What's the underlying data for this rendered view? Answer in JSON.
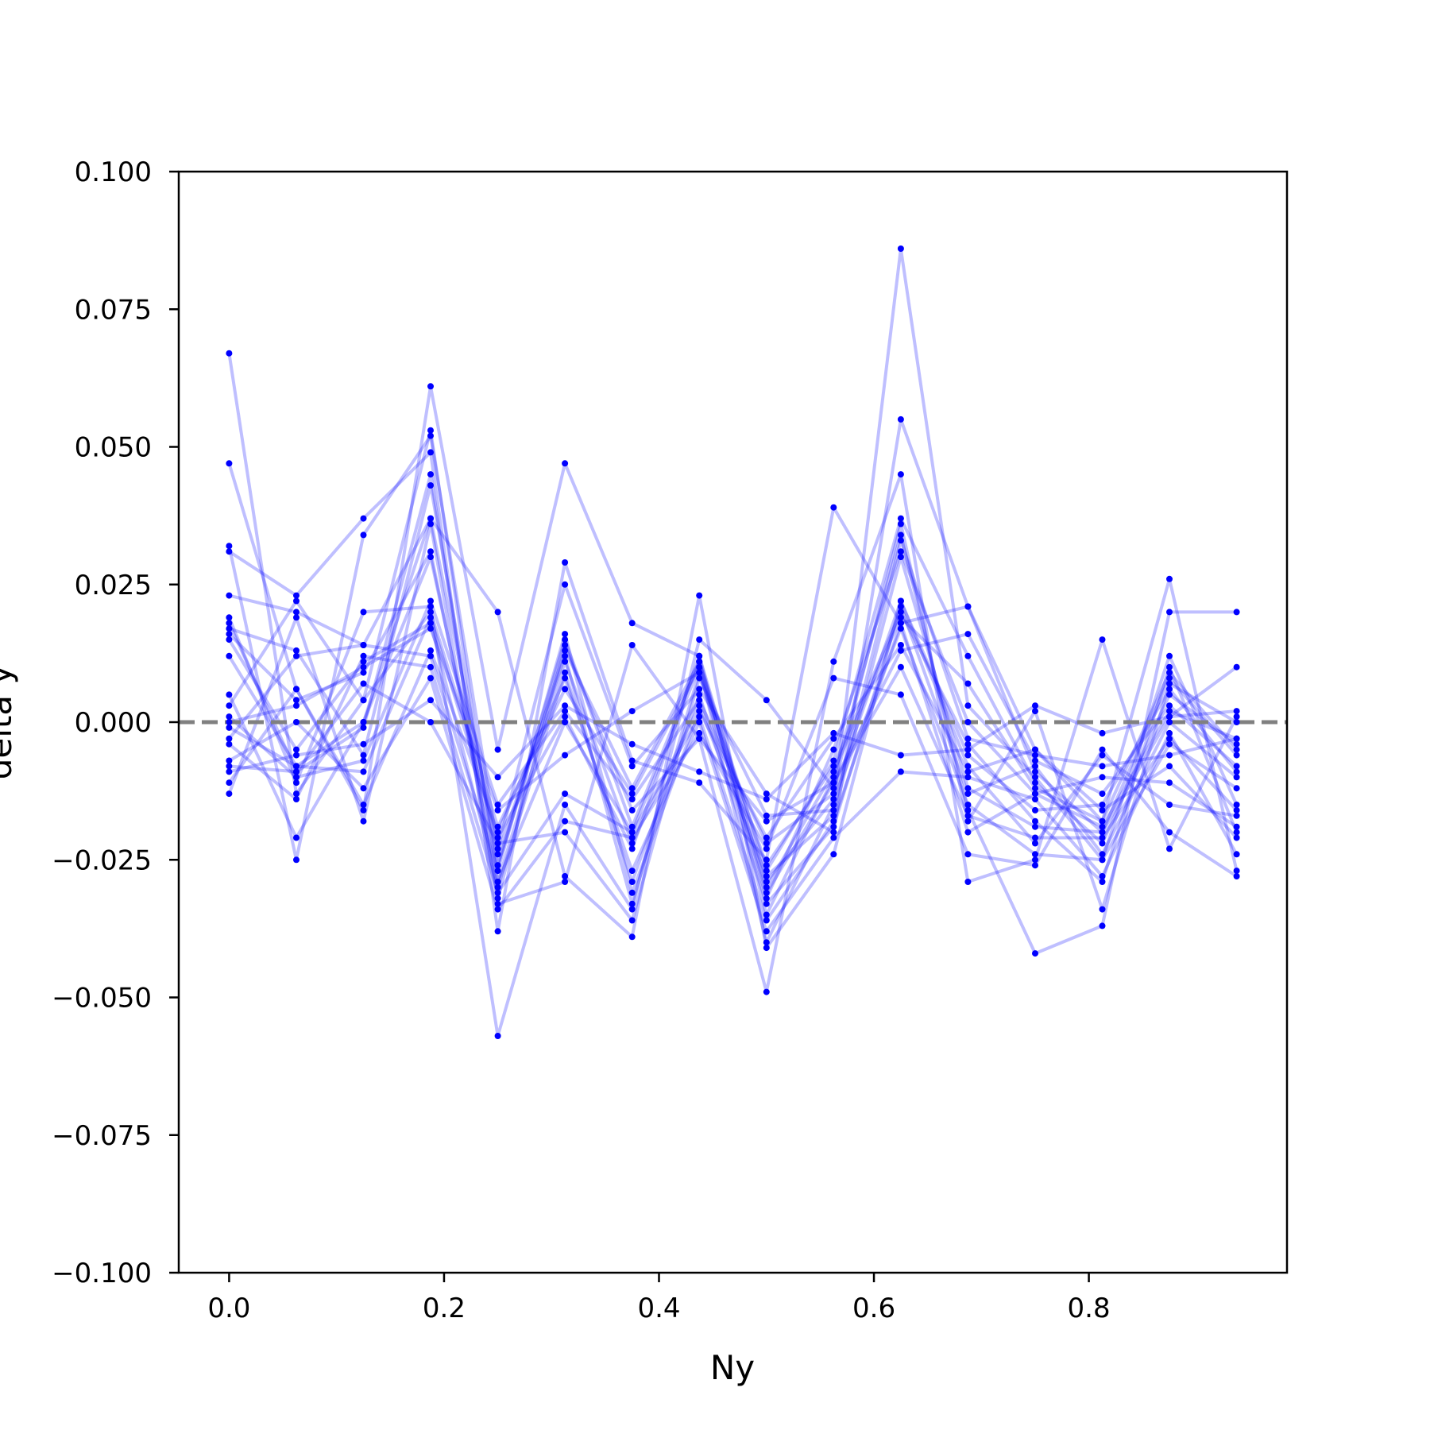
{
  "chart_data": {
    "type": "line",
    "title": "",
    "xlabel": "Ny",
    "ylabel": "delta y",
    "xlim": [
      -0.046875,
      0.984375
    ],
    "ylim": [
      -0.1,
      0.1
    ],
    "xticks": [
      0.0,
      0.2,
      0.4,
      0.6,
      0.8
    ],
    "xtick_labels": [
      "0.0",
      "0.2",
      "0.4",
      "0.6",
      "0.8"
    ],
    "yticks": [
      0.1,
      0.075,
      0.05,
      0.025,
      0.0,
      -0.025,
      -0.05,
      -0.075,
      -0.1
    ],
    "ytick_labels": [
      "0.100",
      "0.075",
      "0.050",
      "0.025",
      "0.000",
      "−0.025",
      "−0.050",
      "−0.075",
      "−0.100"
    ],
    "grid": false,
    "legend": "none",
    "line_color": "#0000ff",
    "marker_color": "#0000ff",
    "reference_line": {
      "y": 0.0,
      "style": "dashed",
      "color": "#808080"
    },
    "x": [
      0.0,
      0.0625,
      0.125,
      0.1875,
      0.25,
      0.3125,
      0.375,
      0.4375,
      0.5,
      0.5625,
      0.625,
      0.6875,
      0.75,
      0.8125,
      0.875,
      0.9375
    ],
    "series": [
      {
        "values": [
          0.067,
          -0.013,
          0.004,
          0.053,
          -0.029,
          0.0,
          -0.02,
          0.01,
          -0.04,
          -0.015,
          0.086,
          0.003,
          -0.01,
          -0.025,
          0.012,
          -0.015
        ]
      },
      {
        "values": [
          0.047,
          0.006,
          -0.016,
          0.061,
          -0.005,
          0.047,
          0.018,
          0.012,
          -0.035,
          -0.01,
          0.034,
          -0.016,
          -0.042,
          -0.037,
          0.02,
          0.02
        ]
      },
      {
        "values": [
          0.032,
          -0.025,
          0.034,
          0.052,
          -0.023,
          0.025,
          -0.008,
          0.006,
          -0.013,
          -0.02,
          0.055,
          0.021,
          -0.005,
          -0.018,
          0.026,
          -0.027
        ]
      },
      {
        "values": [
          0.031,
          0.023,
          0.037,
          0.049,
          -0.038,
          0.029,
          -0.007,
          -0.011,
          -0.025,
          0.039,
          0.018,
          0.021,
          -0.009,
          -0.02,
          0.001,
          0.01
        ]
      },
      {
        "values": [
          0.023,
          0.02,
          0.014,
          0.037,
          0.02,
          -0.028,
          -0.039,
          0.023,
          -0.041,
          -0.024,
          0.022,
          -0.008,
          -0.022,
          -0.006,
          -0.015,
          -0.017
        ]
      },
      {
        "values": [
          0.019,
          -0.011,
          0.02,
          0.021,
          -0.057,
          -0.015,
          -0.034,
          0.015,
          0.004,
          -0.012,
          0.036,
          -0.018,
          0.002,
          -0.034,
          0.007,
          0.0
        ]
      },
      {
        "values": [
          0.018,
          -0.009,
          -0.001,
          0.045,
          -0.033,
          -0.029,
          0.014,
          -0.003,
          -0.049,
          0.011,
          0.045,
          -0.029,
          -0.025,
          0.015,
          -0.023,
          0.001
        ]
      },
      {
        "values": [
          0.017,
          0.013,
          -0.006,
          0.043,
          -0.026,
          0.015,
          -0.019,
          0.011,
          -0.032,
          -0.005,
          0.031,
          0.0,
          -0.013,
          -0.019,
          0.002,
          -0.003
        ]
      },
      {
        "values": [
          0.016,
          0.004,
          0.009,
          0.031,
          -0.029,
          0.011,
          -0.022,
          0.003,
          -0.028,
          -0.017,
          0.03,
          -0.012,
          -0.019,
          -0.02,
          0.008,
          -0.006
        ]
      },
      {
        "values": [
          0.015,
          -0.005,
          0.011,
          0.018,
          -0.03,
          0.009,
          -0.029,
          0.005,
          -0.033,
          -0.019,
          0.021,
          -0.013,
          -0.008,
          -0.024,
          0.0,
          -0.01
        ]
      },
      {
        "values": [
          0.012,
          -0.008,
          0.0,
          0.037,
          -0.024,
          0.012,
          -0.033,
          0.009,
          -0.031,
          -0.011,
          0.01,
          -0.017,
          -0.021,
          -0.021,
          -0.003,
          -0.016
        ]
      },
      {
        "values": [
          0.005,
          -0.021,
          0.0,
          0.03,
          -0.026,
          0.013,
          -0.012,
          0.011,
          -0.027,
          -0.007,
          0.037,
          0.012,
          -0.011,
          -0.022,
          0.005,
          -0.004
        ]
      },
      {
        "values": [
          0.003,
          0.022,
          0.004,
          0.02,
          -0.019,
          0.006,
          -0.013,
          0.01,
          -0.03,
          -0.009,
          0.019,
          0.007,
          -0.012,
          -0.018,
          0.009,
          -0.005
        ]
      },
      {
        "values": [
          0.001,
          -0.01,
          -0.007,
          0.022,
          -0.015,
          0.002,
          -0.014,
          0.004,
          -0.022,
          -0.013,
          0.022,
          -0.006,
          -0.016,
          -0.015,
          0.006,
          -0.009
        ]
      },
      {
        "values": [
          0.0,
          0.003,
          0.01,
          0.017,
          -0.016,
          -0.006,
          0.002,
          0.009,
          -0.026,
          -0.008,
          0.02,
          -0.004,
          -0.018,
          -0.029,
          0.01,
          -0.02
        ]
      },
      {
        "values": [
          -0.001,
          -0.008,
          -0.009,
          0.019,
          -0.021,
          0.001,
          -0.023,
          0.012,
          -0.029,
          -0.014,
          0.017,
          -0.015,
          -0.024,
          -0.025,
          -0.004,
          -0.012
        ]
      },
      {
        "values": [
          -0.003,
          0.012,
          0.014,
          0.012,
          -0.027,
          0.016,
          -0.031,
          0.002,
          -0.021,
          -0.003,
          0.014,
          -0.009,
          -0.005,
          -0.016,
          -0.008,
          -0.021
        ]
      },
      {
        "values": [
          -0.004,
          -0.014,
          0.012,
          0.01,
          -0.031,
          -0.013,
          -0.02,
          0.001,
          -0.036,
          -0.018,
          0.018,
          -0.02,
          -0.013,
          -0.01,
          -0.011,
          -0.019
        ]
      },
      {
        "values": [
          -0.007,
          0.0,
          -0.012,
          0.008,
          -0.034,
          -0.018,
          -0.021,
          -0.002,
          -0.023,
          0.008,
          0.005,
          -0.024,
          -0.026,
          -0.005,
          -0.02,
          -0.028
        ]
      },
      {
        "values": [
          -0.008,
          -0.009,
          0.007,
          0.0,
          -0.022,
          -0.02,
          -0.036,
          0.008,
          -0.017,
          -0.016,
          0.033,
          -0.003,
          -0.006,
          -0.008,
          -0.006,
          -0.003
        ]
      },
      {
        "values": [
          -0.009,
          -0.006,
          -0.004,
          0.004,
          -0.01,
          0.003,
          -0.004,
          -0.009,
          -0.014,
          -0.002,
          -0.006,
          -0.005,
          0.003,
          -0.002,
          0.001,
          0.002
        ]
      },
      {
        "values": [
          -0.011,
          0.006,
          -0.015,
          0.013,
          -0.02,
          0.008,
          -0.027,
          0.0,
          -0.038,
          -0.021,
          -0.009,
          -0.01,
          -0.014,
          -0.028,
          -0.002,
          -0.024
        ]
      },
      {
        "values": [
          -0.013,
          0.019,
          -0.018,
          0.036,
          -0.032,
          0.014,
          -0.016,
          -0.003,
          -0.018,
          -0.011,
          0.013,
          0.016,
          -0.007,
          -0.013,
          0.003,
          -0.008
        ]
      }
    ]
  }
}
